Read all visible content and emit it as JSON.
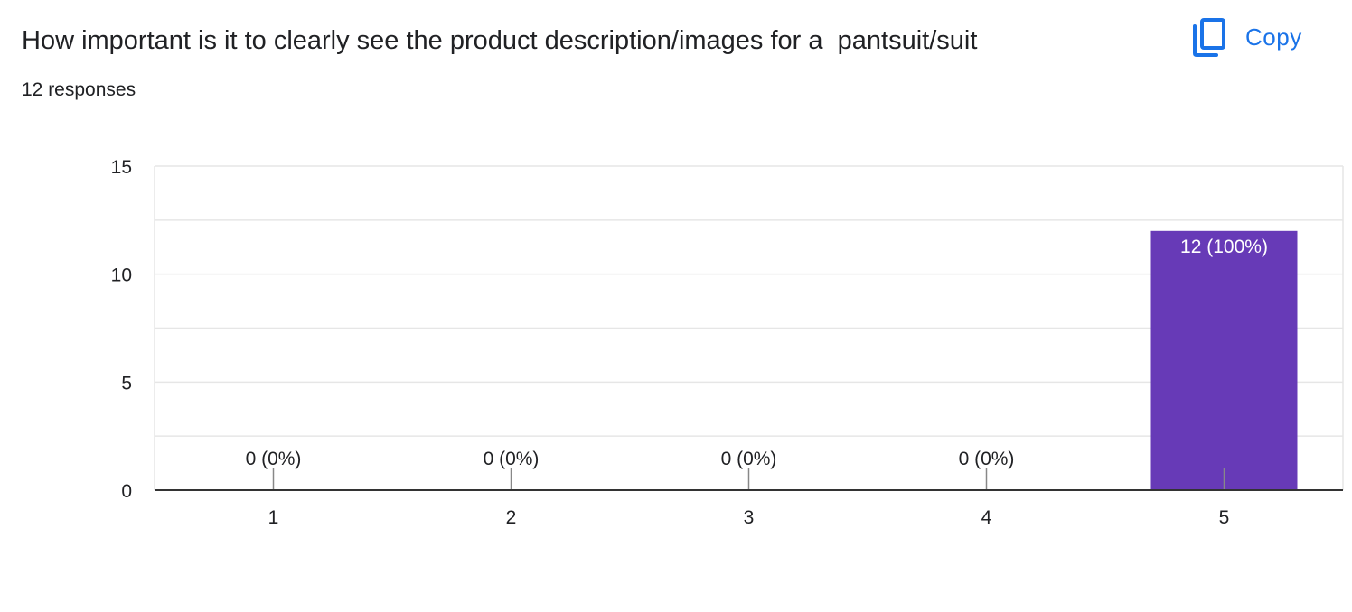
{
  "header": {
    "question": "How important is it to clearly see the product description/images for a  pantsuit/suit",
    "responses": "12 responses",
    "copy_label": "Copy",
    "copy_icon": "copy-icon"
  },
  "colors": {
    "bar": "#673ab7",
    "accent": "#1a73e8",
    "grid": "#e6e6e6",
    "axis": "#333333"
  },
  "chart_data": {
    "type": "bar",
    "categories": [
      "1",
      "2",
      "3",
      "4",
      "5"
    ],
    "values": [
      0,
      0,
      0,
      0,
      12
    ],
    "data_labels": [
      "0 (0%)",
      "0 (0%)",
      "0 (0%)",
      "0 (0%)",
      "12 (100%)"
    ],
    "y_ticks": [
      0,
      5,
      10,
      15
    ],
    "ylim": [
      0,
      15
    ],
    "grid_step": 2.5,
    "grid": true,
    "legend": "none",
    "title": "",
    "xlabel": "",
    "ylabel": ""
  }
}
